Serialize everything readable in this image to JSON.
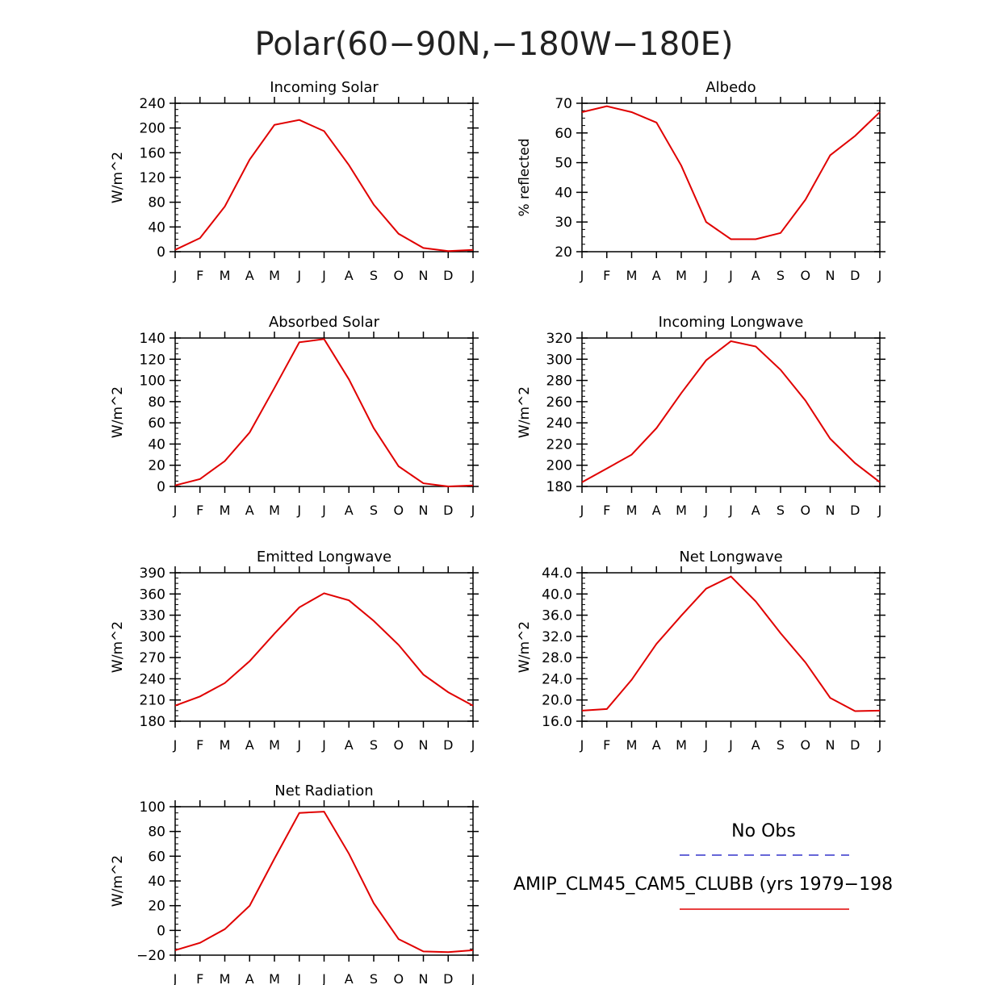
{
  "page_title": "Polar(60−90N,−180W−180E)",
  "months": [
    "J",
    "F",
    "M",
    "A",
    "M",
    "J",
    "J",
    "A",
    "S",
    "O",
    "N",
    "D",
    "J"
  ],
  "legend": {
    "obs_label": "No Obs",
    "obs_color": "#3333cc",
    "model_label": "AMIP_CLM45_CAM5_CLUBB (yrs 1979−198",
    "model_color": "#e00000"
  },
  "chart_data": [
    {
      "type": "line",
      "title": "Incoming Solar",
      "ylabel": "W/m^2",
      "ylim": [
        0,
        240
      ],
      "yticks": [
        0,
        40,
        80,
        120,
        160,
        200,
        240
      ],
      "ytick_labels": [
        "0",
        "40",
        "80",
        "120",
        "160",
        "200",
        "240"
      ],
      "series": [
        {
          "name": "AMIP_CLM45_CAM5_CLUBB",
          "values": [
            3,
            22,
            73,
            149,
            205,
            213,
            195,
            140,
            76,
            29,
            6,
            1,
            3
          ]
        }
      ]
    },
    {
      "type": "line",
      "title": "Albedo",
      "ylabel": "% reflected",
      "ylim": [
        20,
        70
      ],
      "yticks": [
        20,
        30,
        40,
        50,
        60,
        70
      ],
      "ytick_labels": [
        "20",
        "30",
        "40",
        "50",
        "60",
        "70"
      ],
      "series": [
        {
          "name": "AMIP_CLM45_CAM5_CLUBB",
          "values": [
            67,
            69,
            67,
            63.5,
            49,
            30,
            24.2,
            24.2,
            26.3,
            37.5,
            52.5,
            59,
            67
          ]
        }
      ]
    },
    {
      "type": "line",
      "title": "Absorbed Solar",
      "ylabel": "W/m^2",
      "ylim": [
        0,
        140
      ],
      "yticks": [
        0,
        20,
        40,
        60,
        80,
        100,
        120,
        140
      ],
      "ytick_labels": [
        "0",
        "20",
        "40",
        "60",
        "80",
        "100",
        "120",
        "140"
      ],
      "series": [
        {
          "name": "AMIP_CLM45_CAM5_CLUBB",
          "values": [
            1,
            7,
            24,
            51,
            93,
            136,
            139,
            101,
            55,
            19,
            3,
            0,
            1
          ]
        }
      ]
    },
    {
      "type": "line",
      "title": "Incoming Longwave",
      "ylabel": "W/m^2",
      "ylim": [
        180,
        320
      ],
      "yticks": [
        180,
        200,
        220,
        240,
        260,
        280,
        300,
        320
      ],
      "ytick_labels": [
        "180",
        "200",
        "220",
        "240",
        "260",
        "280",
        "300",
        "320"
      ],
      "series": [
        {
          "name": "AMIP_CLM45_CAM5_CLUBB",
          "values": [
            184,
            197,
            210,
            235,
            268,
            299,
            317,
            312,
            290,
            261,
            225,
            202,
            184
          ]
        }
      ]
    },
    {
      "type": "line",
      "title": "Emitted Longwave",
      "ylabel": "W/m^2",
      "ylim": [
        180,
        390
      ],
      "yticks": [
        180,
        210,
        240,
        270,
        300,
        330,
        360,
        390
      ],
      "ytick_labels": [
        "180",
        "210",
        "240",
        "270",
        "300",
        "330",
        "360",
        "390"
      ],
      "series": [
        {
          "name": "AMIP_CLM45_CAM5_CLUBB",
          "values": [
            202,
            215,
            234,
            265,
            304,
            341,
            361,
            351,
            322,
            288,
            246,
            221,
            202
          ]
        }
      ]
    },
    {
      "type": "line",
      "title": "Net Longwave",
      "ylabel": "W/m^2",
      "ylim": [
        16,
        44
      ],
      "yticks": [
        16,
        20,
        24,
        28,
        32,
        36,
        40,
        44
      ],
      "ytick_labels": [
        "16.0",
        "20.0",
        "24.0",
        "28.0",
        "32.0",
        "36.0",
        "40.0",
        "44.0"
      ],
      "series": [
        {
          "name": "AMIP_CLM45_CAM5_CLUBB",
          "values": [
            18,
            18.3,
            23.8,
            30.6,
            35.9,
            41,
            43.3,
            38.6,
            32.6,
            27.1,
            20.4,
            17.9,
            18
          ]
        }
      ]
    },
    {
      "type": "line",
      "title": "Net Radiation",
      "ylabel": "W/m^2",
      "ylim": [
        -20,
        100
      ],
      "yticks": [
        -20,
        0,
        20,
        40,
        60,
        80,
        100
      ],
      "ytick_labels": [
        "−20",
        "0",
        "20",
        "40",
        "60",
        "80",
        "100"
      ],
      "series": [
        {
          "name": "AMIP_CLM45_CAM5_CLUBB",
          "values": [
            -16,
            -10,
            1,
            20,
            58,
            95,
            96,
            62,
            22,
            -7,
            -17,
            -17.5,
            -16
          ]
        }
      ]
    }
  ]
}
